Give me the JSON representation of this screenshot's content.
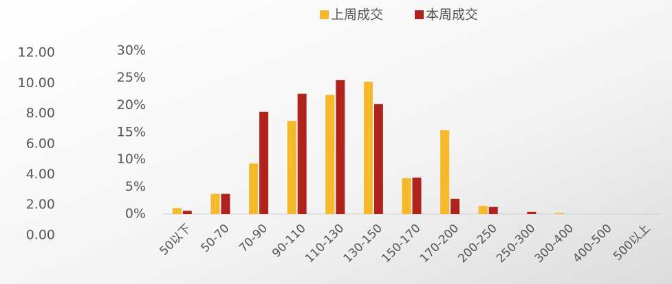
{
  "chart_data": {
    "type": "bar",
    "categories": [
      "50以下",
      "50-70",
      "70-90",
      "90-110",
      "110-130",
      "130-150",
      "150-170",
      "170-200",
      "200-250",
      "250-300",
      "300-400",
      "400-500",
      "500以上"
    ],
    "series": [
      {
        "name": "上周成交",
        "color": "#f6b92b",
        "values": [
          1.1,
          3.7,
          9.3,
          17.1,
          21.9,
          24.3,
          6.6,
          15.4,
          1.5,
          0,
          0.2,
          0,
          0
        ]
      },
      {
        "name": "本周成交",
        "color": "#b0231c",
        "values": [
          0.6,
          3.7,
          18.8,
          22.1,
          24.6,
          20.2,
          6.7,
          2.8,
          1.3,
          0.4,
          0,
          0,
          0
        ]
      }
    ],
    "ylim": [
      0,
      30
    ],
    "yticks": [
      {
        "value": 0,
        "label": "0%"
      },
      {
        "value": 5,
        "label": "5%"
      },
      {
        "value": 10,
        "label": "10%"
      },
      {
        "value": 15,
        "label": "15%"
      },
      {
        "value": 20,
        "label": "20%"
      },
      {
        "value": 25,
        "label": "25%"
      },
      {
        "value": 30,
        "label": "30%"
      }
    ],
    "y2lim": [
      0,
      12
    ],
    "y2ticks": [
      {
        "value": 0,
        "label": "0.00"
      },
      {
        "value": 2,
        "label": "2.00"
      },
      {
        "value": 4,
        "label": "4.00"
      },
      {
        "value": 6,
        "label": "6.00"
      },
      {
        "value": 8,
        "label": "8.00"
      },
      {
        "value": 10,
        "label": "10.00"
      },
      {
        "value": 12,
        "label": "12.00"
      }
    ],
    "legend": "top"
  }
}
